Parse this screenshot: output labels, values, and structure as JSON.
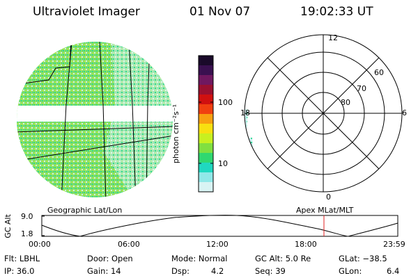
{
  "header": {
    "instrument": "Ultraviolet Imager",
    "date": "01 Nov 07",
    "time": "19:02:33 UT"
  },
  "colorbar": {
    "unit_label": "photon cm⁻²s⁻¹",
    "ticks": [
      "100",
      "10"
    ],
    "colors_top_to_bottom": [
      "#1a0a2a",
      "#3a1050",
      "#701860",
      "#9a1030",
      "#d01010",
      "#f04010",
      "#f8a010",
      "#f8e010",
      "#c8f020",
      "#80e040",
      "#30d870",
      "#20d8c0",
      "#90e8e8",
      "#d8f4f4"
    ]
  },
  "geo_panel": {
    "label": "Geographic Lat/Lon",
    "fill_colors": [
      "#8fe060",
      "#30d890",
      "#c8f0f0"
    ]
  },
  "polar_panel": {
    "label": "Apex MLat/MLT",
    "mlt_labels": [
      "12",
      "6",
      "0",
      "18"
    ],
    "lat_labels": [
      "60",
      "70",
      "80"
    ]
  },
  "altitude_plot": {
    "ylabel": "GC Alt",
    "yticks": [
      "9.0",
      "1.8"
    ],
    "xticks": [
      "00:00",
      "06:00",
      "12:00",
      "18:00",
      "23:59"
    ],
    "marker_color": "#e02020"
  },
  "info": {
    "flt": "Flt: LBHL",
    "ip": "IP: 36.0",
    "door": "Door: Open",
    "gain": "Gain: 14",
    "mode": "Mode: Normal",
    "dsp": "Dsp:",
    "dsp_val": "4.2",
    "gc_alt": "GC Alt: 5.0 Re",
    "seq": "Seq: 39",
    "glat": "GLat: −38.5",
    "glon": "GLon:",
    "glon_val": "6.4"
  }
}
